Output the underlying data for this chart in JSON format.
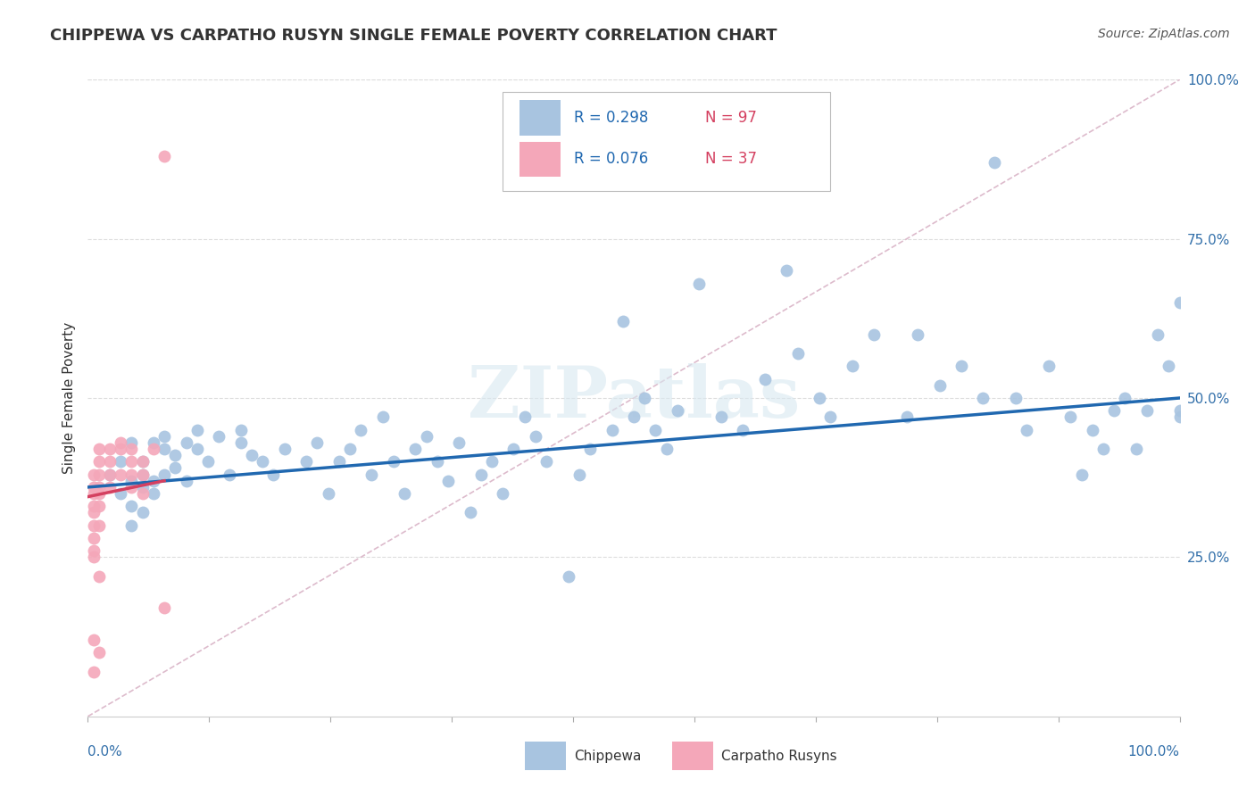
{
  "title": "CHIPPEWA VS CARPATHO RUSYN SINGLE FEMALE POVERTY CORRELATION CHART",
  "source": "Source: ZipAtlas.com",
  "ylabel": "Single Female Poverty",
  "xlim": [
    0.0,
    1.0
  ],
  "ylim": [
    0.0,
    1.0
  ],
  "chippewa_color": "#a8c4e0",
  "carpatho_color": "#f4a7b9",
  "chippewa_line_color": "#2068b0",
  "carpatho_line_color": "#d44060",
  "diagonal_color": "#cccccc",
  "R_chippewa": 0.298,
  "N_chippewa": 97,
  "R_carpatho": 0.076,
  "N_carpatho": 37,
  "legend_label_chippewa": "Chippewa",
  "legend_label_carpatho": "Carpatho Rusyns",
  "watermark": "ZIPatlas",
  "chippewa_x": [
    0.02,
    0.03,
    0.03,
    0.04,
    0.04,
    0.04,
    0.04,
    0.05,
    0.05,
    0.05,
    0.05,
    0.06,
    0.06,
    0.06,
    0.07,
    0.07,
    0.07,
    0.08,
    0.08,
    0.09,
    0.09,
    0.1,
    0.1,
    0.11,
    0.12,
    0.13,
    0.14,
    0.14,
    0.15,
    0.16,
    0.17,
    0.18,
    0.2,
    0.21,
    0.22,
    0.23,
    0.24,
    0.25,
    0.26,
    0.27,
    0.28,
    0.29,
    0.3,
    0.31,
    0.32,
    0.33,
    0.34,
    0.35,
    0.36,
    0.37,
    0.38,
    0.39,
    0.4,
    0.41,
    0.42,
    0.44,
    0.45,
    0.46,
    0.48,
    0.49,
    0.5,
    0.51,
    0.52,
    0.53,
    0.54,
    0.56,
    0.58,
    0.6,
    0.62,
    0.64,
    0.65,
    0.67,
    0.68,
    0.7,
    0.72,
    0.75,
    0.76,
    0.78,
    0.8,
    0.82,
    0.83,
    0.85,
    0.86,
    0.88,
    0.9,
    0.91,
    0.92,
    0.93,
    0.94,
    0.95,
    0.96,
    0.97,
    0.98,
    0.99,
    1.0,
    1.0,
    1.0
  ],
  "chippewa_y": [
    0.38,
    0.4,
    0.35,
    0.37,
    0.43,
    0.33,
    0.3,
    0.38,
    0.36,
    0.32,
    0.4,
    0.37,
    0.43,
    0.35,
    0.42,
    0.38,
    0.44,
    0.41,
    0.39,
    0.43,
    0.37,
    0.45,
    0.42,
    0.4,
    0.44,
    0.38,
    0.43,
    0.45,
    0.41,
    0.4,
    0.38,
    0.42,
    0.4,
    0.43,
    0.35,
    0.4,
    0.42,
    0.45,
    0.38,
    0.47,
    0.4,
    0.35,
    0.42,
    0.44,
    0.4,
    0.37,
    0.43,
    0.32,
    0.38,
    0.4,
    0.35,
    0.42,
    0.47,
    0.44,
    0.4,
    0.22,
    0.38,
    0.42,
    0.45,
    0.62,
    0.47,
    0.5,
    0.45,
    0.42,
    0.48,
    0.68,
    0.47,
    0.45,
    0.53,
    0.7,
    0.57,
    0.5,
    0.47,
    0.55,
    0.6,
    0.47,
    0.6,
    0.52,
    0.55,
    0.5,
    0.87,
    0.5,
    0.45,
    0.55,
    0.47,
    0.38,
    0.45,
    0.42,
    0.48,
    0.5,
    0.42,
    0.48,
    0.6,
    0.55,
    0.47,
    0.65,
    0.48
  ],
  "carpatho_x": [
    0.005,
    0.005,
    0.005,
    0.005,
    0.005,
    0.005,
    0.005,
    0.005,
    0.005,
    0.005,
    0.005,
    0.01,
    0.01,
    0.01,
    0.01,
    0.01,
    0.01,
    0.01,
    0.01,
    0.01,
    0.02,
    0.02,
    0.02,
    0.02,
    0.03,
    0.03,
    0.03,
    0.04,
    0.04,
    0.04,
    0.04,
    0.05,
    0.05,
    0.05,
    0.06,
    0.07,
    0.07
  ],
  "carpatho_y": [
    0.38,
    0.36,
    0.35,
    0.33,
    0.32,
    0.3,
    0.28,
    0.26,
    0.25,
    0.12,
    0.07,
    0.42,
    0.4,
    0.38,
    0.36,
    0.35,
    0.33,
    0.3,
    0.22,
    0.1,
    0.42,
    0.4,
    0.38,
    0.36,
    0.43,
    0.42,
    0.38,
    0.42,
    0.4,
    0.38,
    0.36,
    0.4,
    0.38,
    0.35,
    0.42,
    0.88,
    0.17
  ],
  "chip_line_x0": 0.0,
  "chip_line_x1": 1.0,
  "chip_line_y0": 0.36,
  "chip_line_y1": 0.5,
  "carp_line_x0": 0.0,
  "carp_line_x1": 0.07,
  "carp_line_y0": 0.345,
  "carp_line_y1": 0.37
}
